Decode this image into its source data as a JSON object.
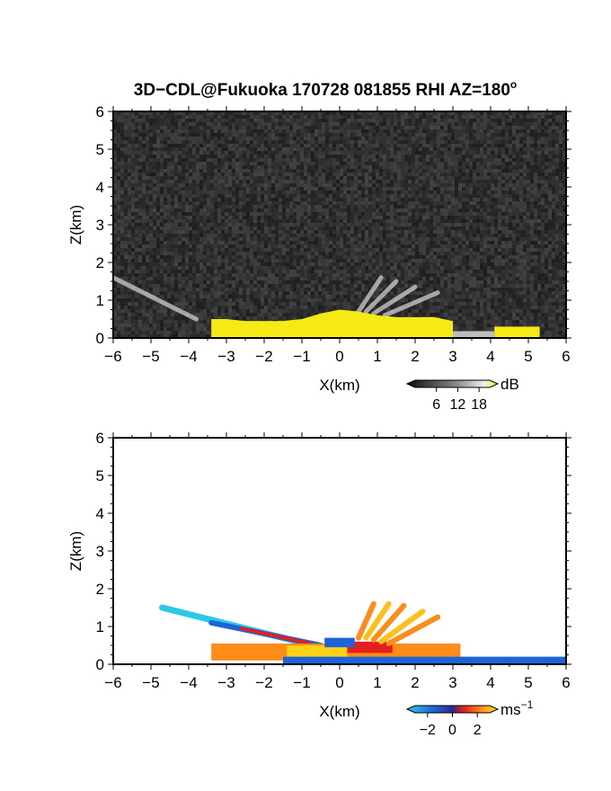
{
  "figure": {
    "title": "3D−CDL@Fukuoka 170728 081855 RHI AZ=180",
    "title_sup": "o"
  },
  "panels": [
    {
      "name": "reflectivity",
      "xlabel": "X(km)",
      "ylabel": "Z(km)",
      "xticks": [
        "−6",
        "−5",
        "−4",
        "−3",
        "−2",
        "−1",
        "0",
        "1",
        "2",
        "3",
        "4",
        "5",
        "6"
      ],
      "yticks": [
        "0",
        "1",
        "2",
        "3",
        "4",
        "5",
        "6"
      ],
      "colorbar": {
        "unit": "dB",
        "unit_sup": "",
        "ticks": [
          "6",
          "12",
          "18"
        ]
      },
      "background": "#2a2a2a",
      "signal_color": "#f5ea14"
    },
    {
      "name": "doppler-velocity",
      "xlabel": "X(km)",
      "ylabel": "Z(km)",
      "xticks": [
        "−6",
        "−5",
        "−4",
        "−3",
        "−2",
        "−1",
        "0",
        "1",
        "2",
        "3",
        "4",
        "5",
        "6"
      ],
      "yticks": [
        "0",
        "1",
        "2",
        "3",
        "4",
        "5",
        "6"
      ],
      "colorbar": {
        "unit": "ms",
        "unit_sup": "−1",
        "ticks": [
          "−2",
          "0",
          "2"
        ]
      },
      "background": "#ffffff"
    }
  ],
  "chart_data": [
    {
      "type": "heatmap",
      "title": "3D−CDL@Fukuoka 170728 081855 RHI AZ=180°",
      "xlabel": "X(km)",
      "ylabel": "Z(km)",
      "xlim": [
        -6,
        6
      ],
      "ylim": [
        0,
        6
      ],
      "quantity": "signal strength",
      "unit": "dB",
      "color_range": [
        0,
        21
      ],
      "colorbar_ticks": [
        6,
        12,
        18
      ],
      "echo_top_profile": {
        "x": [
          -3.4,
          -3.0,
          -2.5,
          -2.0,
          -1.5,
          -1.0,
          -0.5,
          0.0,
          0.5,
          1.0,
          1.5,
          2.0,
          2.5,
          3.0
        ],
        "z": [
          0.5,
          0.5,
          0.45,
          0.45,
          0.45,
          0.5,
          0.65,
          0.75,
          0.7,
          0.6,
          0.55,
          0.55,
          0.55,
          0.45
        ]
      },
      "far_echo": {
        "x_range": [
          4.1,
          5.3
        ],
        "z_max": 0.3
      },
      "rays": [
        {
          "from": [
            -3.8,
            0.5
          ],
          "to": [
            -6.0,
            1.6
          ]
        },
        {
          "from": [
            0.5,
            0.7
          ],
          "to": [
            1.1,
            1.6
          ]
        },
        {
          "from": [
            0.7,
            0.7
          ],
          "to": [
            1.5,
            1.5
          ]
        },
        {
          "from": [
            0.9,
            0.65
          ],
          "to": [
            2.0,
            1.35
          ]
        },
        {
          "from": [
            1.2,
            0.6
          ],
          "to": [
            2.6,
            1.2
          ]
        }
      ]
    },
    {
      "type": "heatmap",
      "xlabel": "X(km)",
      "ylabel": "Z(km)",
      "xlim": [
        -6,
        6
      ],
      "ylim": [
        0,
        6
      ],
      "quantity": "radial velocity",
      "unit": "ms⁻¹",
      "color_range": [
        -3,
        3
      ],
      "colorbar_ticks": [
        -2,
        0,
        2
      ],
      "low_layer": {
        "x_range": [
          -3.4,
          3.2
        ],
        "z_max": 0.55
      },
      "surface_layer": {
        "x_range": [
          -1.5,
          6.0
        ],
        "z_max": 0.2
      },
      "ray_left": {
        "from": [
          -4.7,
          1.5
        ],
        "to": [
          -0.5,
          0.45
        ]
      },
      "rays": [
        {
          "from": [
            0.5,
            0.7
          ],
          "to": [
            0.9,
            1.6
          ]
        },
        {
          "from": [
            0.7,
            0.7
          ],
          "to": [
            1.3,
            1.6
          ]
        },
        {
          "from": [
            0.9,
            0.65
          ],
          "to": [
            1.7,
            1.55
          ]
        },
        {
          "from": [
            1.1,
            0.6
          ],
          "to": [
            2.2,
            1.4
          ]
        },
        {
          "from": [
            1.3,
            0.55
          ],
          "to": [
            2.6,
            1.25
          ]
        }
      ]
    }
  ]
}
